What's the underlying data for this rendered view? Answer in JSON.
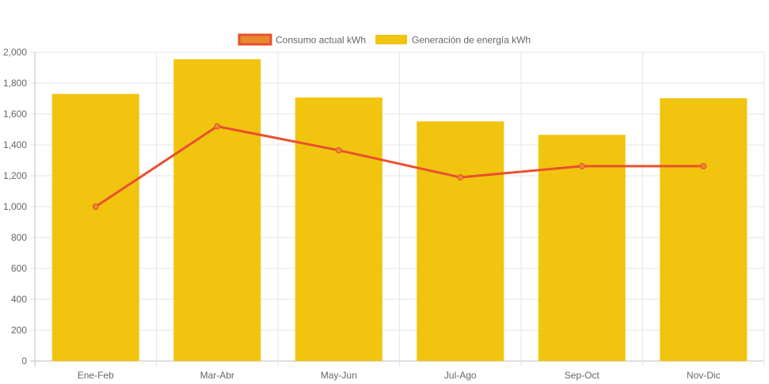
{
  "chart_data": {
    "type": "bar",
    "title": "",
    "xlabel": "",
    "ylabel": "",
    "categories": [
      "Ene-Feb",
      "Mar-Abr",
      "May-Jun",
      "Jul-Ago",
      "Sep-Oct",
      "Nov-Dic"
    ],
    "ylim": [
      0,
      2000
    ],
    "y_ticks": [
      "0",
      "200",
      "400",
      "600",
      "800",
      "1,000",
      "1,200",
      "1,400",
      "1,600",
      "1,800",
      "2,000"
    ],
    "y_tick_values": [
      0,
      200,
      400,
      600,
      800,
      1000,
      1200,
      1400,
      1600,
      1800,
      2000
    ],
    "grid": true,
    "legend_position": "top-center",
    "series": [
      {
        "name": "Consumo actual kWh",
        "type": "line",
        "color": "#e8512d",
        "marker_fill": "#e8892d",
        "values": [
          1000,
          1520,
          1365,
          1190,
          1262,
          1262
        ]
      },
      {
        "name": "Generación de energía kWh",
        "type": "bar",
        "color": "#f1c40f",
        "values": [
          1730,
          1955,
          1707,
          1552,
          1465,
          1702
        ]
      }
    ]
  }
}
